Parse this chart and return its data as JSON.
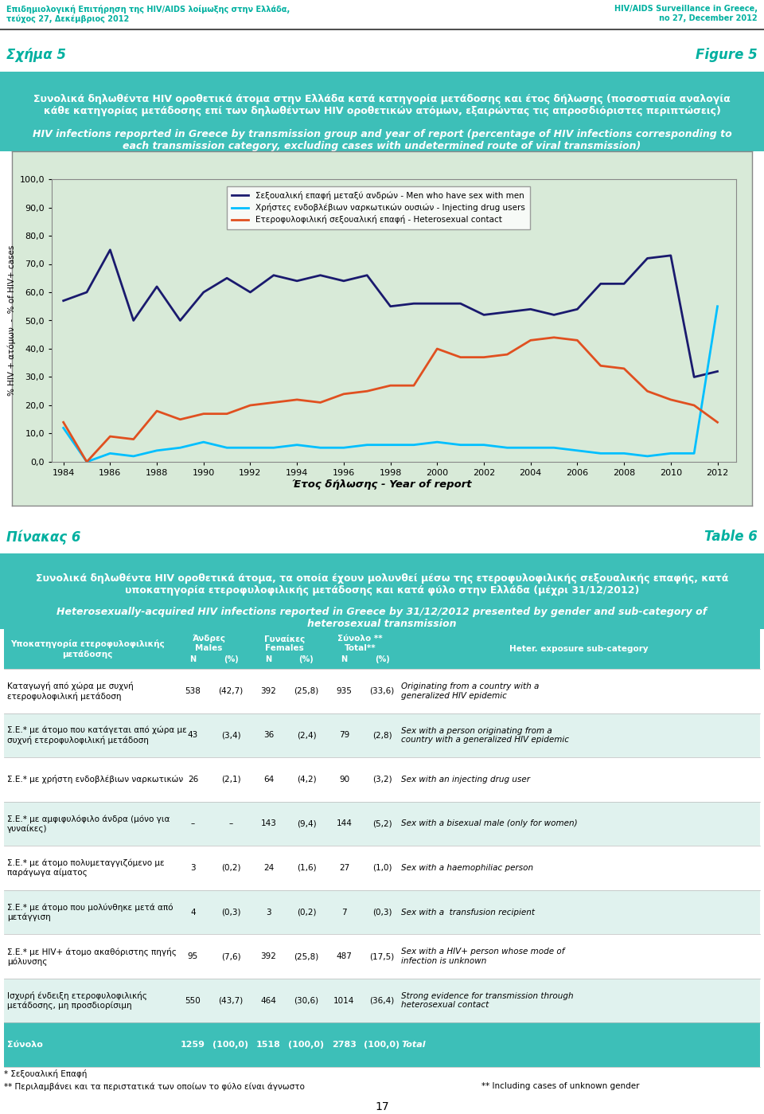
{
  "header_left": "Επιδημιολογική Επιτήρηση της HIV/AIDS λοίμωξης στην Ελλάδα,\nτεύχος 27, Δεκέμβριος 2012",
  "header_right": "HIV/AIDS Surveillance in Greece,\nno 27, December 2012",
  "header_color": "#00b0a0",
  "fig5_label_left": "Σχήμα 5",
  "fig5_label_right": "Figure 5",
  "fig5_title_greek": "Συνολικά δηλωθέντα HIV οροθετικά άτομα στην Ελλάδα κατά κατηγορία μετάδοσης και έτος δήλωσης (ποσοστιαία αναλογία\nκάθε κατηγορίας μετάδοσης επί των δηλωθέντων HIV οροθετικών ατόμων, εξαιρώντας τις απροσδιόριστες περιπτώσεις)",
  "fig5_title_english": "HIV infections repoprted in Greece by transmission group and year of report (percentage of HIV infections corresponding to\neach transmission category, excluding cases with undetermined route of viral transmission)",
  "fig5_bg_color": "#d8ead8",
  "years": [
    1984,
    1985,
    1986,
    1987,
    1988,
    1989,
    1990,
    1991,
    1992,
    1993,
    1994,
    1995,
    1996,
    1997,
    1998,
    1999,
    2000,
    2001,
    2002,
    2003,
    2004,
    2005,
    2006,
    2007,
    2008,
    2009,
    2010,
    2011,
    2012
  ],
  "msm": [
    57,
    60,
    75,
    50,
    62,
    50,
    60,
    65,
    60,
    66,
    64,
    66,
    64,
    66,
    55,
    56,
    56,
    56,
    52,
    53,
    54,
    52,
    54,
    63,
    63,
    72,
    73,
    30,
    32
  ],
  "idu": [
    12,
    0,
    3,
    2,
    4,
    5,
    7,
    5,
    5,
    5,
    6,
    5,
    5,
    6,
    6,
    6,
    7,
    6,
    6,
    5,
    5,
    5,
    4,
    3,
    3,
    2,
    3,
    3,
    55
  ],
  "hetero": [
    14,
    0,
    9,
    8,
    18,
    15,
    17,
    17,
    20,
    21,
    22,
    21,
    24,
    25,
    27,
    27,
    40,
    37,
    37,
    38,
    43,
    44,
    43,
    34,
    33,
    25,
    22,
    20,
    14
  ],
  "msm_color": "#1a1a6e",
  "idu_color": "#00bfff",
  "hetero_color": "#e05020",
  "ylabel": "% HIV + ατόμων  -  % of HIV+ cases",
  "xlabel": "Έτος δήλωσης - Year of report",
  "legend_msm": "Σεξουαλική επαφή μεταξύ ανδρών - Men who have sex with men",
  "legend_idu": "Χρήστες ενδοβλέβιων ναρκωτικών ουσιών - Injecting drug users",
  "legend_hetero": "Ετεροφυλοφιλική σεξουαλική επαφή - Heterosexual contact",
  "teal_color": "#3dbfb8",
  "tab6_label_left": "Πίνακας 6",
  "tab6_label_right": "Table 6",
  "tab6_title_greek": "Συνολικά δηλωθέντα HIV οροθετικά άτομα, τα οποία έχουν μολυνθεί μέσω της ετεροφυλοφιλικής σεξουαλικής επαφής, κατά\nυποκατηγορία ετεροφυλοφιλικής μετάδοσης και κατά φύλο στην Ελλάδα (μέχρι 31/12/2012)",
  "tab6_title_english": "Heterosexually-acquired HIV infections reported in Greece by 31/12/2012 presented by gender and sub-category of\nheterosexual transmission",
  "tab6_row_alt_color": "#e0f2ee",
  "table_rows": [
    {
      "category_greek": "Καταγωγή από χώρα με συχνή\nετεροφυλοφιλική μετάδοση",
      "males_n": "538",
      "males_pct": "(42,7)",
      "females_n": "392",
      "females_pct": "(25,8)",
      "total_n": "935",
      "total_pct": "(33,6)",
      "heter_sub": "Originating from a country with a\ngeneralized HIV epidemic"
    },
    {
      "category_greek": "Σ.Ε.* με άτομο που κατάγεται από χώρα με\nσυχνή ετεροφυλοφιλική μετάδοση",
      "males_n": "43",
      "males_pct": "(3,4)",
      "females_n": "36",
      "females_pct": "(2,4)",
      "total_n": "79",
      "total_pct": "(2,8)",
      "heter_sub": "Sex with a person originating from a\ncountry with a generalized HIV epidemic"
    },
    {
      "category_greek": "Σ.Ε.* με χρήστη ενδοβλέβιων ναρκωτικών",
      "males_n": "26",
      "males_pct": "(2,1)",
      "females_n": "64",
      "females_pct": "(4,2)",
      "total_n": "90",
      "total_pct": "(3,2)",
      "heter_sub": "Sex with an injecting drug user"
    },
    {
      "category_greek": "Σ.Ε.* με αμφιφυλόφιλο άνδρα (μόνο για\nγυναίκες)",
      "males_n": "–",
      "males_pct": "–",
      "females_n": "143",
      "females_pct": "(9,4)",
      "total_n": "144",
      "total_pct": "(5,2)",
      "heter_sub": "Sex with a bisexual male (only for women)"
    },
    {
      "category_greek": "Σ.Ε.* με άτομο πολυμεταγγιζόμενο με\nπαράγωγα αίματος",
      "males_n": "3",
      "males_pct": "(0,2)",
      "females_n": "24",
      "females_pct": "(1,6)",
      "total_n": "27",
      "total_pct": "(1,0)",
      "heter_sub": "Sex with a haemophiliac person"
    },
    {
      "category_greek": "Σ.Ε.* με άτομο που μολύνθηκε μετά από\nμετάγγιση",
      "males_n": "4",
      "males_pct": "(0,3)",
      "females_n": "3",
      "females_pct": "(0,2)",
      "total_n": "7",
      "total_pct": "(0,3)",
      "heter_sub": "Sex with a  transfusion recipient"
    },
    {
      "category_greek": "Σ.Ε.* με HIV+ άτομο ακαθόριστης πηγής\nμόλυνσης",
      "males_n": "95",
      "males_pct": "(7,6)",
      "females_n": "392",
      "females_pct": "(25,8)",
      "total_n": "487",
      "total_pct": "(17,5)",
      "heter_sub": "Sex with a HIV+ person whose mode of\ninfection is unknown"
    },
    {
      "category_greek": "Ισχυρή ένδειξη ετεροφυλοφιλικής\nμετάδοσης, μη προσδιορίσιμη",
      "males_n": "550",
      "males_pct": "(43,7)",
      "females_n": "464",
      "females_pct": "(30,6)",
      "total_n": "1014",
      "total_pct": "(36,4)",
      "heter_sub": "Strong evidence for transmission through\nheterosexual contact"
    }
  ],
  "total_row": {
    "category_greek": "Σύνολο",
    "males_n": "1259",
    "males_pct": "(100,0)",
    "females_n": "1518",
    "females_pct": "(100,0)",
    "total_n": "2783",
    "total_pct": "(100,0)",
    "heter_sub": "Total"
  },
  "footnote1": "* Σεξουαλική Επαφή",
  "footnote2": "** Περιλαμβάνει και τα περιστατικά των οποίων το φύλο είναι άγνωστο",
  "footnote3": "** Including cases of unknown gender",
  "page_number": "17"
}
